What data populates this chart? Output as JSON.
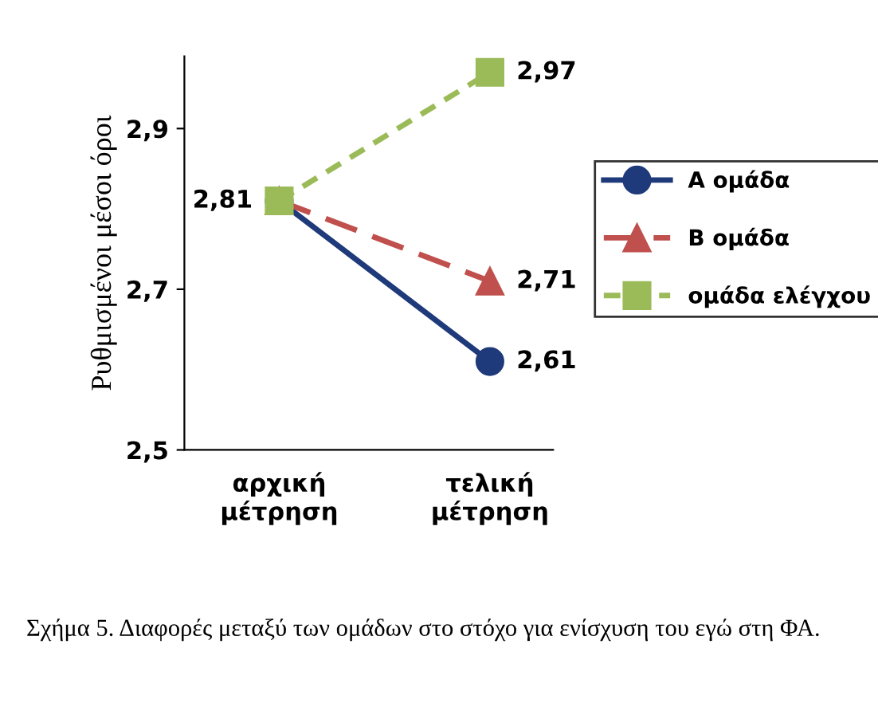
{
  "chart_data": {
    "type": "line",
    "ylabel": "Ρυθμισμένοι μέσοι όροι",
    "categories": [
      "αρχική\nμέτρηση",
      "τελική\nμέτρηση"
    ],
    "series": [
      {
        "name": "Α ομάδα",
        "color": "#1f3a7a",
        "values": [
          2.81,
          2.61
        ],
        "marker": "circle",
        "line_style": "solid",
        "value_labels": [
          "2,81",
          "2,61"
        ]
      },
      {
        "name": "Β ομάδα",
        "color": "#c0504d",
        "values": [
          2.81,
          2.71
        ],
        "marker": "triangle",
        "line_style": "dashed",
        "value_labels": [
          null,
          "2,71"
        ]
      },
      {
        "name": "ομάδα ελέγχου",
        "color": "#9bbb59",
        "values": [
          2.81,
          2.97
        ],
        "marker": "square",
        "line_style": "dotted",
        "value_labels": [
          null,
          "2,97"
        ]
      }
    ],
    "ylim": [
      2.5,
      2.99
    ],
    "yticks": [
      {
        "value": 2.5,
        "label": "2,5"
      },
      {
        "value": 2.7,
        "label": "2,7"
      },
      {
        "value": 2.9,
        "label": "2,9"
      }
    ],
    "grid": false,
    "legend": "right",
    "annotations": [
      "Σχήμα 5. Διαφορές μεταξύ των ομάδων στο στόχο για ενίσχυση του εγώ στη ΦΑ."
    ]
  }
}
